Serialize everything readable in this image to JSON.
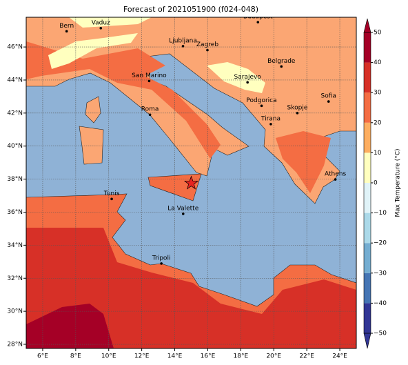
{
  "map": {
    "title": "Forecast of 2021051900 (f024-048)",
    "xlim": [
      5,
      25
    ],
    "ylim": [
      27.75,
      47.8
    ],
    "xticks": [
      {
        "value": 6,
        "label": "6°E"
      },
      {
        "value": 8,
        "label": "8°E"
      },
      {
        "value": 10,
        "label": "10°E"
      },
      {
        "value": 12,
        "label": "12°E"
      },
      {
        "value": 14,
        "label": "14°E"
      },
      {
        "value": 16,
        "label": "16°E"
      },
      {
        "value": 18,
        "label": "18°E"
      },
      {
        "value": 20,
        "label": "20°E"
      },
      {
        "value": 22,
        "label": "22°E"
      },
      {
        "value": 24,
        "label": "24°E"
      }
    ],
    "yticks": [
      {
        "value": 28,
        "label": "28°N"
      },
      {
        "value": 30,
        "label": "30°N"
      },
      {
        "value": 32,
        "label": "32°N"
      },
      {
        "value": 34,
        "label": "34°N"
      },
      {
        "value": 36,
        "label": "36°N"
      },
      {
        "value": 38,
        "label": "38°N"
      },
      {
        "value": 40,
        "label": "40°N"
      },
      {
        "value": 42,
        "label": "42°N"
      },
      {
        "value": 44,
        "label": "44°N"
      },
      {
        "value": 46,
        "label": "46°N"
      }
    ],
    "cities": [
      {
        "name": "Bern",
        "lon": 7.45,
        "lat": 46.95
      },
      {
        "name": "Vaduz",
        "lon": 9.52,
        "lat": 47.14
      },
      {
        "name": "Budapest",
        "lon": 19.04,
        "lat": 47.5
      },
      {
        "name": "Ljubljana",
        "lon": 14.5,
        "lat": 46.05
      },
      {
        "name": "Zagreb",
        "lon": 15.98,
        "lat": 45.81
      },
      {
        "name": "Belgrade",
        "lon": 20.46,
        "lat": 44.82
      },
      {
        "name": "Sarajevo",
        "lon": 18.41,
        "lat": 43.86
      },
      {
        "name": "San Marino",
        "lon": 12.45,
        "lat": 43.94
      },
      {
        "name": "Sofia",
        "lon": 23.32,
        "lat": 42.7
      },
      {
        "name": "Roma",
        "lon": 12.5,
        "lat": 41.9
      },
      {
        "name": "Podgorica",
        "lon": 19.26,
        "lat": 42.44
      },
      {
        "name": "Skopje",
        "lon": 21.43,
        "lat": 42.0
      },
      {
        "name": "Tirana",
        "lon": 19.82,
        "lat": 41.33
      },
      {
        "name": "Athens",
        "lon": 23.73,
        "lat": 37.98
      },
      {
        "name": "Tunis",
        "lon": 10.18,
        "lat": 36.8
      },
      {
        "name": "La Valette",
        "lon": 14.51,
        "lat": 35.9
      },
      {
        "name": "Tripoli",
        "lon": 13.19,
        "lat": 32.89
      }
    ],
    "star": {
      "lon": 15.0,
      "lat": 37.75,
      "color": "#e8231f"
    },
    "colorbar": {
      "label": "Max Temperature (°C)",
      "ticks": [
        {
          "value": -50,
          "label": "−50"
        },
        {
          "value": -40,
          "label": "−40"
        },
        {
          "value": -30,
          "label": "−30"
        },
        {
          "value": -20,
          "label": "−20"
        },
        {
          "value": -10,
          "label": "−10"
        },
        0,
        10,
        20,
        30,
        40,
        50
      ],
      "colors": [
        "#313695",
        "#4575b4",
        "#74add1",
        "#abd9e9",
        "#e0f3f8",
        "#ffffbf",
        "#fdae61",
        "#f46d43",
        "#d73027",
        "#a50026"
      ]
    }
  }
}
